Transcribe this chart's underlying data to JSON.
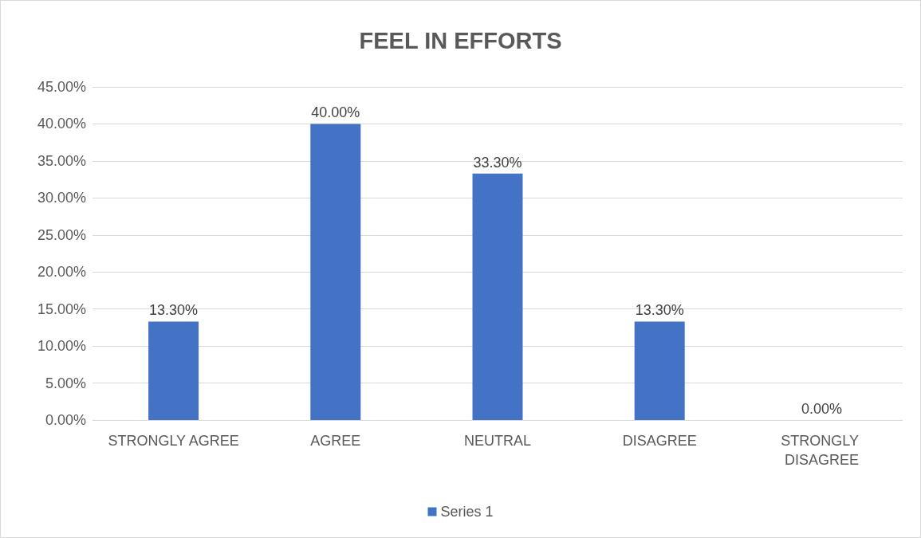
{
  "chart_data": {
    "type": "bar",
    "title": "FEEL IN EFFORTS",
    "categories": [
      "STRONGLY AGREE",
      "AGREE",
      "NEUTRAL",
      "DISAGREE",
      "STRONGLY DISAGREE"
    ],
    "series": [
      {
        "name": "Series 1",
        "color": "#4472c4",
        "values": [
          13.3,
          40,
          33.3,
          13.3,
          0
        ],
        "value_labels": [
          "13.30%",
          "40.00%",
          "33.30%",
          "13.30%",
          "0.00%"
        ]
      }
    ],
    "ylim": [
      0,
      45
    ],
    "yticks": [
      {
        "value": 0,
        "label": "0.00%"
      },
      {
        "value": 5,
        "label": "5.00%"
      },
      {
        "value": 10,
        "label": "10.00%"
      },
      {
        "value": 15,
        "label": "15.00%"
      },
      {
        "value": 20,
        "label": "20.00%"
      },
      {
        "value": 25,
        "label": "25.00%"
      },
      {
        "value": 30,
        "label": "30.00%"
      },
      {
        "value": 35,
        "label": "35.00%"
      },
      {
        "value": 40,
        "label": "40.00%"
      },
      {
        "value": 45,
        "label": "45.00%"
      }
    ],
    "grid": "y",
    "legend": "bottom"
  }
}
